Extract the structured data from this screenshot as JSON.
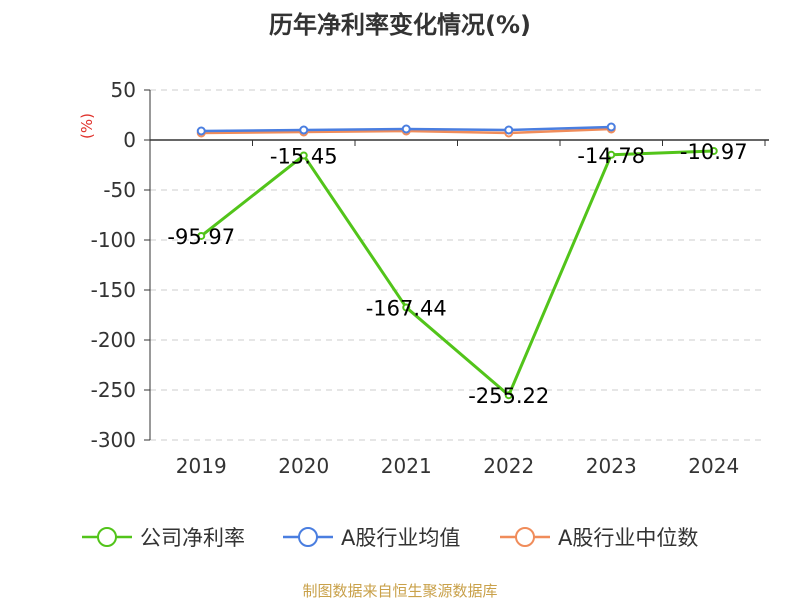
{
  "chart_data": {
    "type": "line",
    "title": "历年净利率变化情况(%)",
    "ylabel": "(%)",
    "categories": [
      "2019",
      "2020",
      "2021",
      "2022",
      "2023",
      "2024"
    ],
    "yticks": [
      50,
      0,
      -50,
      -100,
      -150,
      -200,
      -250,
      -300
    ],
    "ylim": [
      -300,
      50
    ],
    "grid": true,
    "legend_position": "bottom",
    "series": [
      {
        "name": "公司净利率",
        "color": "#52c41a",
        "values": [
          -95.97,
          -15.45,
          -167.44,
          -255.22,
          -14.78,
          -10.97
        ],
        "labels": [
          "-95.97",
          "-15.45",
          "-167.44",
          "-255.22",
          "-14.78",
          "-10.97"
        ]
      },
      {
        "name": "A股行业均值",
        "color": "#4a7ee0",
        "values": [
          9,
          10,
          11,
          10,
          13,
          null
        ]
      },
      {
        "name": "A股行业中位数",
        "color": "#f08c5a",
        "values": [
          7,
          8,
          9,
          7,
          11,
          null
        ]
      }
    ]
  },
  "source": "制图数据来自恒生聚源数据库"
}
